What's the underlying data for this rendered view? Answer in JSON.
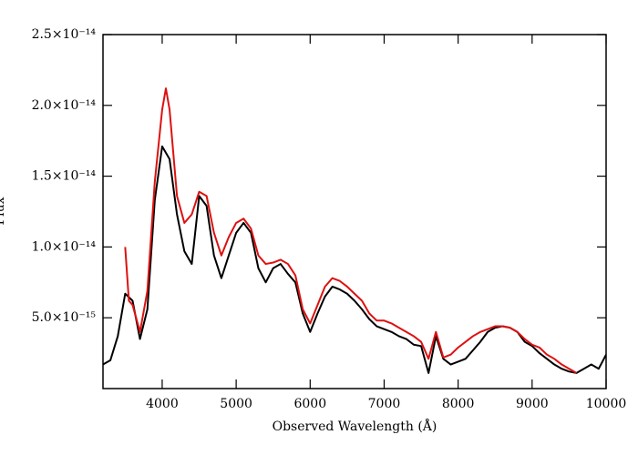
{
  "chart_data": {
    "type": "line",
    "xlabel": "Observed Wavelength (Å)",
    "ylabel": "Flux",
    "xlim": [
      3200,
      10000
    ],
    "xticks": [
      4000,
      5000,
      6000,
      7000,
      8000,
      9000,
      10000
    ],
    "ylim": [
      0,
      2.5e-14
    ],
    "yticks": [
      {
        "value": 5e-15,
        "label": "5.0×10⁻¹⁵"
      },
      {
        "value": 1e-14,
        "label": "1.0×10⁻¹⁴"
      },
      {
        "value": 1.5e-14,
        "label": "1.5×10⁻¹⁴"
      },
      {
        "value": 2e-14,
        "label": "2.0×10⁻¹⁴"
      },
      {
        "value": 2.5e-14,
        "label": "2.5×10⁻¹⁴"
      }
    ],
    "series": [
      {
        "color": "#000000",
        "x": [
          3200,
          3300,
          3400,
          3500,
          3600,
          3700,
          3800,
          3900,
          4000,
          4100,
          4200,
          4300,
          4400,
          4500,
          4600,
          4700,
          4800,
          4900,
          5000,
          5100,
          5200,
          5300,
          5400,
          5500,
          5600,
          5700,
          5800,
          5900,
          6000,
          6100,
          6200,
          6300,
          6400,
          6500,
          6600,
          6700,
          6800,
          6900,
          7000,
          7100,
          7200,
          7300,
          7400,
          7500,
          7600,
          7700,
          7800,
          7900,
          8000,
          8100,
          8200,
          8300,
          8400,
          8500,
          8600,
          8700,
          8800,
          8900,
          9000,
          9100,
          9200,
          9300,
          9400,
          9500,
          9600,
          9700,
          9800,
          9900,
          10000
        ],
        "values": [
          1.7e-15,
          2e-15,
          3.7e-15,
          6.7e-15,
          6.2e-15,
          3.5e-15,
          5.6e-15,
          1.33e-14,
          1.71e-14,
          1.62e-14,
          1.23e-14,
          9.7e-15,
          8.8e-15,
          1.36e-14,
          1.29e-14,
          9.4e-15,
          7.8e-15,
          9.4e-15,
          1.1e-14,
          1.17e-14,
          1.1e-14,
          8.5e-15,
          7.5e-15,
          8.5e-15,
          8.8e-15,
          8.1e-15,
          7.5e-15,
          5.3e-15,
          4e-15,
          5.3e-15,
          6.5e-15,
          7.2e-15,
          7e-15,
          6.7e-15,
          6.2e-15,
          5.6e-15,
          4.9e-15,
          4.4e-15,
          4.2e-15,
          4e-15,
          3.7e-15,
          3.5e-15,
          3.1e-15,
          3e-15,
          1.1e-15,
          3.7e-15,
          2.1e-15,
          1.7e-15,
          1.9e-15,
          2.1e-15,
          2.7e-15,
          3.3e-15,
          4e-15,
          4.3e-15,
          4.4e-15,
          4.3e-15,
          4e-15,
          3.3e-15,
          3e-15,
          2.5e-15,
          2.1e-15,
          1.7e-15,
          1.4e-15,
          1.2e-15,
          1.1e-15,
          1.4e-15,
          1.7e-15,
          1.4e-15,
          2.4e-15
        ]
      },
      {
        "color": "#dd1111",
        "x": [
          3500,
          3550,
          3600,
          3700,
          3800,
          3900,
          4000,
          4050,
          4100,
          4200,
          4300,
          4400,
          4500,
          4600,
          4700,
          4800,
          4900,
          5000,
          5100,
          5200,
          5300,
          5400,
          5500,
          5600,
          5700,
          5800,
          5900,
          6000,
          6100,
          6200,
          6300,
          6400,
          6500,
          6600,
          6700,
          6800,
          6900,
          7000,
          7100,
          7200,
          7300,
          7400,
          7500,
          7600,
          7700,
          7800,
          7900,
          8000,
          8100,
          8200,
          8300,
          8400,
          8500,
          8600,
          8700,
          8800,
          8900,
          9000,
          9100,
          9200,
          9300,
          9400,
          9500,
          9600
        ],
        "values": [
          1e-14,
          6.2e-15,
          5.9e-15,
          4e-15,
          6.9e-15,
          1.46e-14,
          1.97e-14,
          2.12e-14,
          1.97e-14,
          1.36e-14,
          1.17e-14,
          1.23e-14,
          1.39e-14,
          1.36e-14,
          1.1e-14,
          9.4e-15,
          1.07e-14,
          1.17e-14,
          1.2e-14,
          1.13e-14,
          9.4e-15,
          8.8e-15,
          8.9e-15,
          9.1e-15,
          8.8e-15,
          8e-15,
          5.6e-15,
          4.6e-15,
          5.9e-15,
          7.2e-15,
          7.8e-15,
          7.6e-15,
          7.2e-15,
          6.7e-15,
          6.2e-15,
          5.3e-15,
          4.8e-15,
          4.8e-15,
          4.6e-15,
          4.3e-15,
          4e-15,
          3.7e-15,
          3.3e-15,
          2.1e-15,
          4e-15,
          2.2e-15,
          2.4e-15,
          2.9e-15,
          3.3e-15,
          3.7e-15,
          4e-15,
          4.2e-15,
          4.4e-15,
          4.4e-15,
          4.3e-15,
          4e-15,
          3.5e-15,
          3.1e-15,
          2.9e-15,
          2.4e-15,
          2.1e-15,
          1.7e-15,
          1.4e-15,
          1.1e-15
        ]
      }
    ]
  }
}
